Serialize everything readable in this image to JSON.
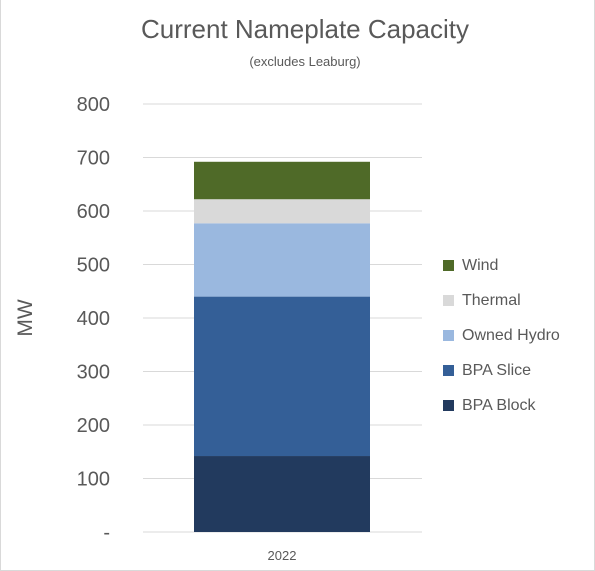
{
  "chart_data": {
    "type": "bar",
    "stacked": true,
    "title": "Current Nameplate Capacity",
    "subtitle": "(excludes Leaburg)",
    "ylabel": "MW",
    "xlabel": "",
    "categories": [
      "2022"
    ],
    "ylim": [
      0,
      800
    ],
    "yticks": [
      {
        "value": 800,
        "label": "800"
      },
      {
        "value": 700,
        "label": "700"
      },
      {
        "value": 600,
        "label": "600"
      },
      {
        "value": 500,
        "label": "500"
      },
      {
        "value": 400,
        "label": "400"
      },
      {
        "value": 300,
        "label": "300"
      },
      {
        "value": 200,
        "label": "200"
      },
      {
        "value": 100,
        "label": "100"
      },
      {
        "value": 0,
        "label": "-"
      }
    ],
    "grid": true,
    "legend_position": "right",
    "series": [
      {
        "name": "BPA Block",
        "values": [
          142
        ],
        "color": "#223a5e"
      },
      {
        "name": "BPA Slice",
        "values": [
          298
        ],
        "color": "#345f97"
      },
      {
        "name": "Owned Hydro",
        "values": [
          137
        ],
        "color": "#9ab8df"
      },
      {
        "name": "Thermal",
        "values": [
          45
        ],
        "color": "#d9d9d9"
      },
      {
        "name": "Wind",
        "values": [
          70
        ],
        "color": "#4f6a28"
      }
    ],
    "legend_order": [
      "Wind",
      "Thermal",
      "Owned Hydro",
      "BPA Slice",
      "BPA Block"
    ]
  }
}
